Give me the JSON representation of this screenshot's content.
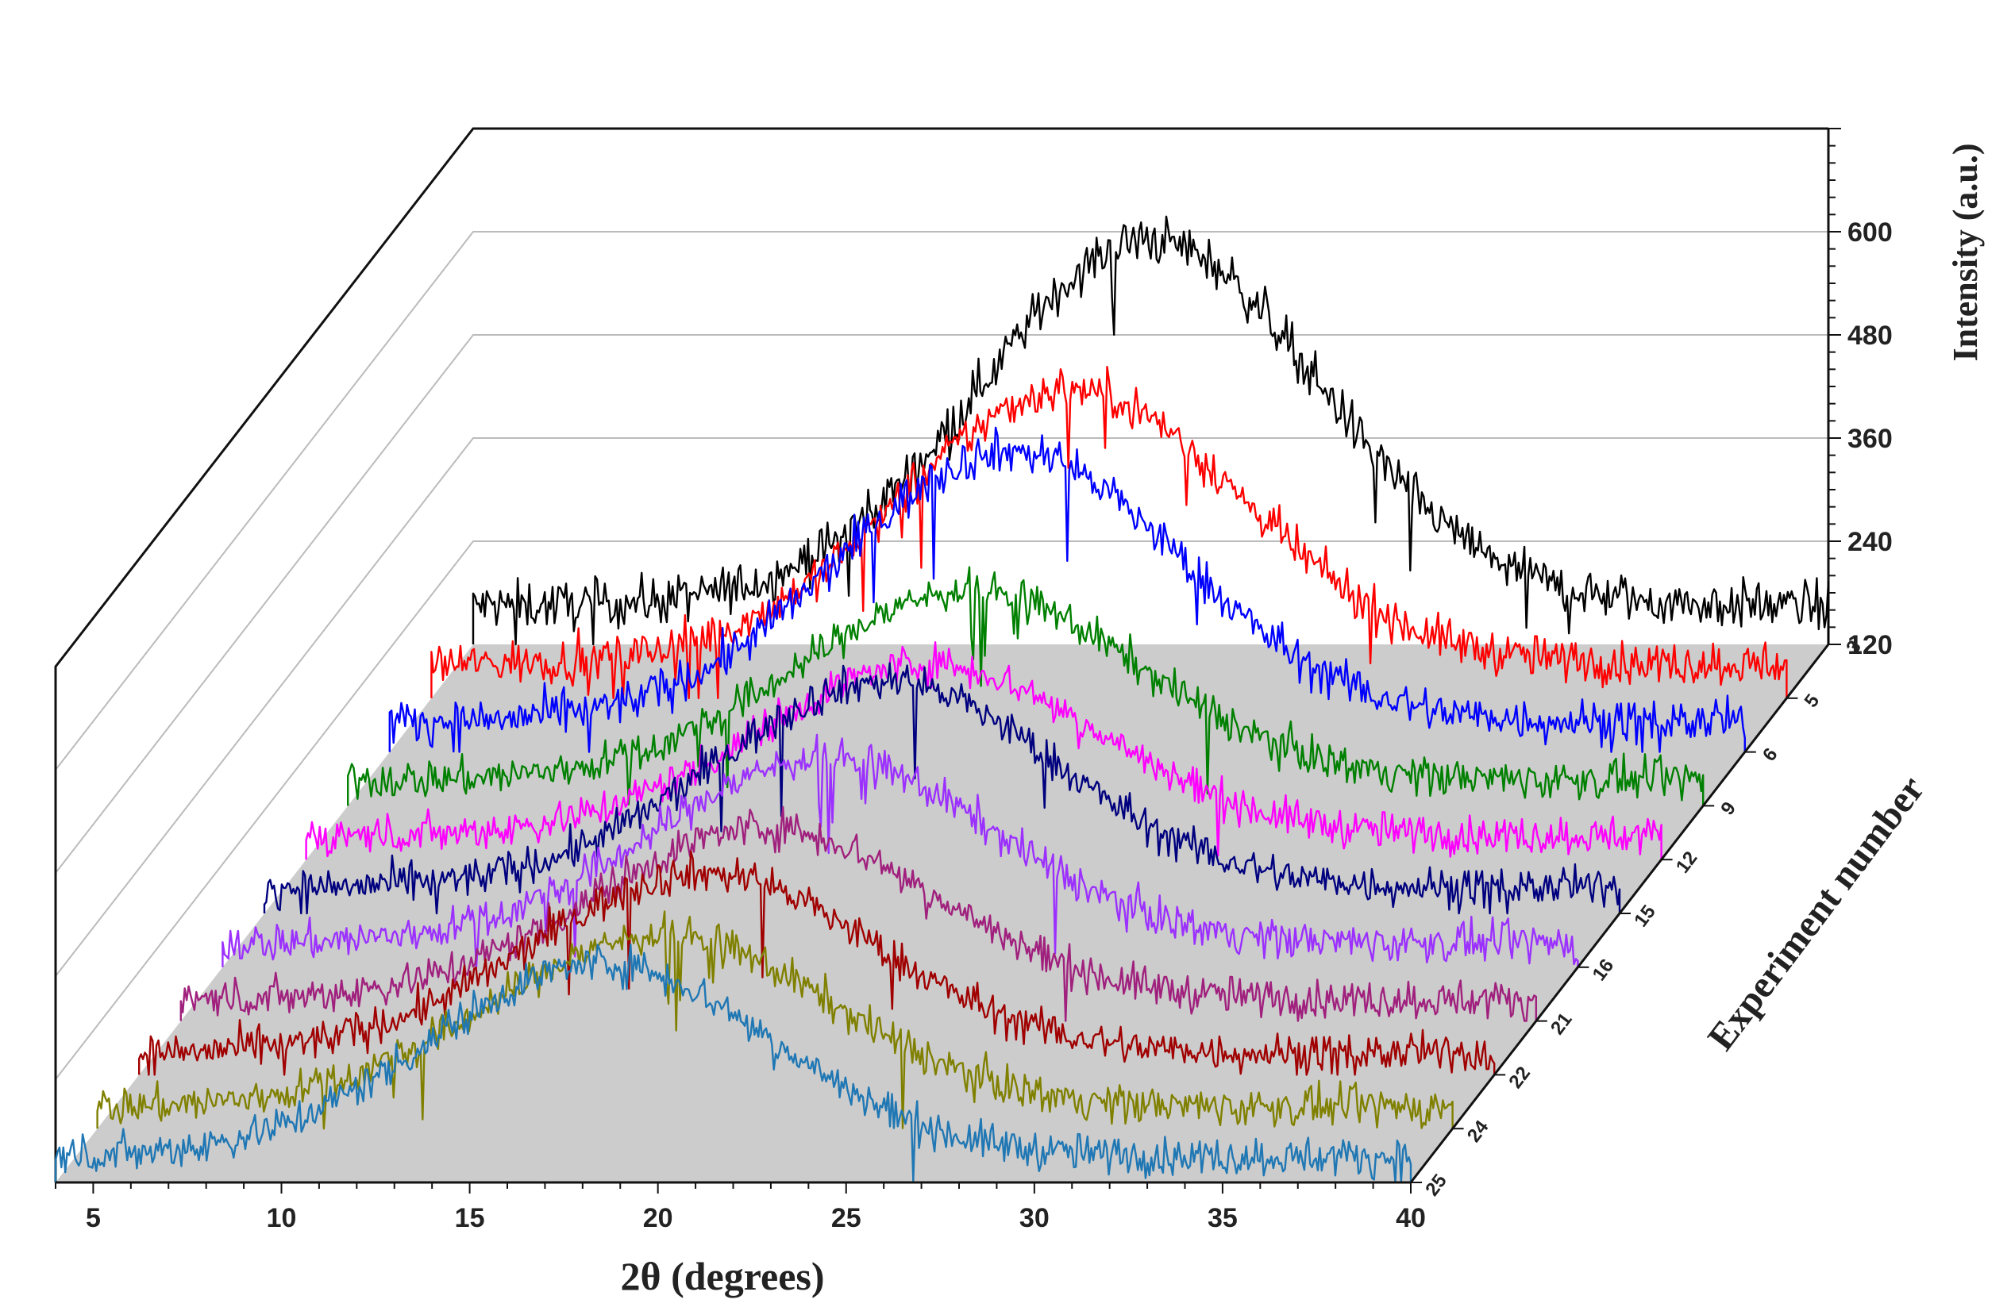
{
  "chart_data": {
    "type": "line",
    "style": "3d-waterfall",
    "xlabel": "2θ (degrees)",
    "ylabel": "Intensity (a.u.)",
    "zlabel": "Experiment number",
    "xlim": [
      4,
      40
    ],
    "ylim": [
      120,
      720
    ],
    "x_ticks": [
      5,
      10,
      15,
      20,
      25,
      30,
      35,
      40
    ],
    "y_ticks": [
      120,
      240,
      360,
      480,
      600
    ],
    "z_ticks": [
      "3",
      "5",
      "6",
      "9",
      "12",
      "15",
      "16",
      "21",
      "22",
      "24",
      "25"
    ],
    "series": [
      {
        "name": "3",
        "color": "#000000",
        "baseline": 165,
        "peak_x": 22.0,
        "peak_height": 425,
        "width": 4.5,
        "noise": 20
      },
      {
        "name": "5",
        "color": "#ff0000",
        "baseline": 160,
        "peak_x": 21.0,
        "peak_height": 320,
        "width": 4.5,
        "noise": 18
      },
      {
        "name": "6",
        "color": "#0000ff",
        "baseline": 155,
        "peak_x": 20.5,
        "peak_height": 315,
        "width": 4.5,
        "noise": 18
      },
      {
        "name": "9",
        "color": "#008000",
        "baseline": 150,
        "peak_x": 20.5,
        "peak_height": 220,
        "width": 4.5,
        "noise": 16
      },
      {
        "name": "12",
        "color": "#ff00ff",
        "baseline": 148,
        "peak_x": 20.5,
        "peak_height": 200,
        "width": 4.5,
        "noise": 16
      },
      {
        "name": "15",
        "color": "#00007f",
        "baseline": 150,
        "peak_x": 20.5,
        "peak_height": 240,
        "width": 4.5,
        "noise": 16
      },
      {
        "name": "16",
        "color": "#9b30ff",
        "baseline": 148,
        "peak_x": 20.0,
        "peak_height": 215,
        "width": 4.5,
        "noise": 16
      },
      {
        "name": "21",
        "color": "#a0207d",
        "baseline": 145,
        "peak_x": 19.5,
        "peak_height": 200,
        "width": 4.5,
        "noise": 16
      },
      {
        "name": "22",
        "color": "#a00000",
        "baseline": 145,
        "peak_x": 19.0,
        "peak_height": 210,
        "width": 4.5,
        "noise": 16
      },
      {
        "name": "24",
        "color": "#808000",
        "baseline": 145,
        "peak_x": 19.0,
        "peak_height": 200,
        "width": 4.5,
        "noise": 16
      },
      {
        "name": "25",
        "color": "#1f77b4",
        "baseline": 150,
        "peak_x": 18.5,
        "peak_height": 225,
        "width": 4.5,
        "noise": 16
      }
    ]
  }
}
